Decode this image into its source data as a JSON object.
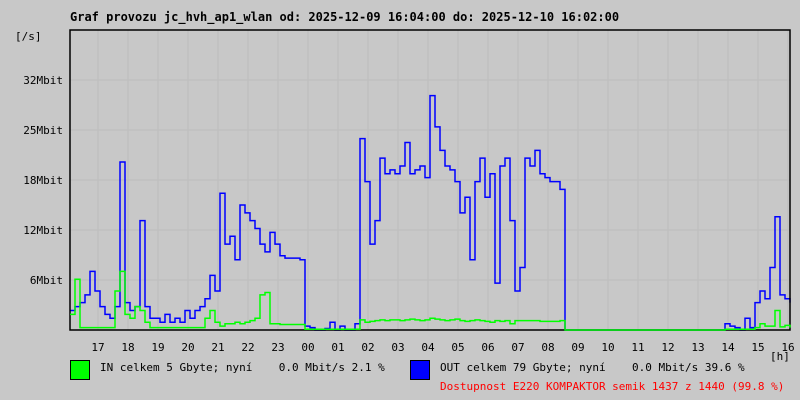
{
  "title": "Graf provozu jc_hvh_ap1_wlan od: 2025-12-09 16:04:00 do: 2025-12-10 16:02:00",
  "colors": {
    "in": "#00ff00",
    "out": "#0000ff",
    "availability": "#ff0000",
    "grid": "#c0c0c0",
    "background": "#c8c8c8"
  },
  "legend": {
    "in": "IN celkem 5 Gbyte; nyní    0.0 Mbit/s 2.1 %",
    "out": "OUT celkem 79 Gbyte; nyní    0.0 Mbit/s 39.6 %",
    "availability": "Dostupnost E220 KOMPAKTOR semik 1437 z 1440 (99.8 %)"
  },
  "chart_data": {
    "type": "line",
    "title": "Graf provozu jc_hvh_ap1_wlan od: 2025-12-09 16:04:00 do: 2025-12-10 16:02:00",
    "ylabel": "[/s]",
    "xlabel": "[h]",
    "y_unit": "Mbit",
    "ylim": [
      0,
      38.4
    ],
    "yticks": [
      6.4,
      12.8,
      19.2,
      25.6,
      32
    ],
    "ytick_labels": [
      "6Mbit",
      "12Mbit",
      "18Mbit",
      "25Mbit",
      "32Mbit"
    ],
    "x_start": "2025-12-09 16:04",
    "x_end": "2025-12-10 16:04",
    "sample_interval_minutes": 10,
    "xtick_labels": [
      "17",
      "18",
      "19",
      "20",
      "21",
      "22",
      "23",
      "00",
      "01",
      "02",
      "03",
      "04",
      "05",
      "06",
      "07",
      "08",
      "09",
      "10",
      "11",
      "12",
      "13",
      "14",
      "15",
      "16"
    ],
    "grid": true,
    "series": [
      {
        "name": "IN",
        "color": "#00ff00",
        "values": [
          2,
          6.5,
          0.3,
          0.3,
          0.3,
          0.3,
          0.3,
          0.3,
          0.3,
          5,
          7.5,
          2,
          1.5,
          3,
          2.5,
          1,
          0.3,
          0.3,
          0.3,
          0.3,
          0.3,
          0.3,
          0.3,
          0.3,
          0.3,
          0.3,
          0.3,
          1.5,
          2.5,
          1,
          0.5,
          0.8,
          0.8,
          1,
          0.8,
          1,
          1.2,
          1.5,
          4.5,
          4.8,
          0.8,
          0.8,
          0.7,
          0.7,
          0.7,
          0.7,
          0.7,
          0.1,
          0.1,
          0.1,
          0.1,
          0.1,
          0.1,
          0.1,
          0.1,
          0.1,
          0.1,
          0.1,
          1.3,
          1.0,
          1.1,
          1.2,
          1.3,
          1.2,
          1.3,
          1.3,
          1.2,
          1.3,
          1.4,
          1.3,
          1.2,
          1.3,
          1.5,
          1.4,
          1.3,
          1.2,
          1.3,
          1.4,
          1.2,
          1.1,
          1.2,
          1.3,
          1.2,
          1.1,
          1.0,
          1.2,
          1.1,
          1.2,
          0.8,
          1.2,
          1.2,
          1.2,
          1.2,
          1.2,
          1.1,
          1.1,
          1.1,
          1.1,
          1.2,
          0,
          0,
          0,
          0,
          0,
          0,
          0,
          0,
          0,
          0,
          0,
          0,
          0,
          0,
          0,
          0,
          0,
          0,
          0,
          0,
          0,
          0,
          0,
          0,
          0,
          0,
          0,
          0,
          0,
          0,
          0,
          0,
          0.1,
          0.1,
          0.1,
          0.1,
          0.1,
          0.1,
          0.3,
          0.8,
          0.5,
          0.5,
          2.5,
          0.4,
          0.6,
          0.3
        ]
      },
      {
        "name": "OUT",
        "color": "#0000ff",
        "values": [
          2.5,
          3,
          3.5,
          4.5,
          7.5,
          5,
          3,
          2,
          1.5,
          3,
          21.5,
          3.5,
          2.5,
          3,
          14,
          3,
          1.5,
          1.5,
          1,
          2,
          1,
          1.5,
          1,
          2.5,
          1.5,
          2.5,
          3,
          4,
          7,
          5,
          17.5,
          11,
          12,
          9,
          16,
          15,
          14,
          13,
          11,
          10,
          12.5,
          11,
          9.5,
          9.2,
          9.2,
          9.2,
          9,
          0.5,
          0.3,
          0,
          0,
          0.2,
          1,
          0,
          0.5,
          0,
          0,
          0.8,
          24.5,
          19,
          11,
          14,
          22,
          20,
          20.5,
          20,
          21,
          24,
          20,
          20.5,
          21,
          19.5,
          30,
          26,
          23,
          21,
          20.5,
          19,
          15,
          17,
          9,
          19,
          22,
          17,
          20,
          6,
          21,
          22,
          14,
          5,
          8,
          22,
          21,
          23,
          20,
          19.5,
          19,
          19,
          18,
          0,
          0,
          0,
          0,
          0,
          0,
          0,
          0,
          0,
          0,
          0,
          0,
          0,
          0,
          0,
          0,
          0,
          0,
          0,
          0,
          0,
          0,
          0,
          0,
          0,
          0,
          0,
          0,
          0,
          0,
          0,
          0,
          0.8,
          0.5,
          0.3,
          0,
          1.5,
          0.3,
          3.5,
          5,
          4,
          8,
          14.5,
          4.5,
          4,
          3.5
        ]
      }
    ]
  }
}
